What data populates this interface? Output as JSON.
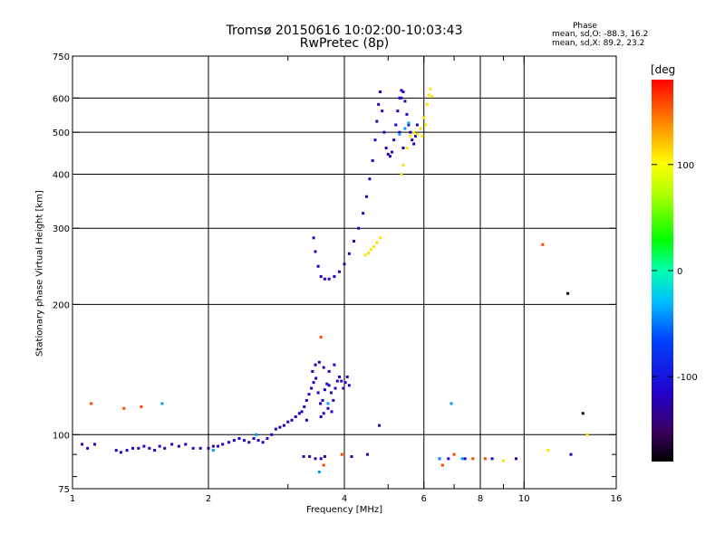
{
  "chart_data": {
    "type": "scatter",
    "title": "Tromsø 20150616 10:02:00-10:03:43",
    "subtitle": "RwPretec (8p)",
    "xlabel": "Frequency [MHz]",
    "ylabel": "Stationary phase Virtual Height [km]",
    "x_scale": "log",
    "y_scale": "log",
    "xlim": [
      1,
      16
    ],
    "ylim": [
      75,
      750
    ],
    "x_ticks": [
      1,
      2,
      4,
      6,
      8,
      10,
      16
    ],
    "x_tick_labels": [
      "1",
      "2",
      "4",
      "6",
      "8",
      "10",
      "16"
    ],
    "x_minor_ticks": [
      3,
      5,
      7,
      9
    ],
    "y_ticks": [
      75,
      100,
      200,
      300,
      400,
      500,
      600,
      750
    ],
    "y_tick_labels": [
      "75",
      "100",
      "200",
      "300",
      "400",
      "500",
      "600",
      "750"
    ],
    "y_minor_ticks": [
      80,
      90
    ],
    "grid": true,
    "phase_stats": {
      "heading": "Phase",
      "o_line": "mean, sd,O: -88.3, 16.2",
      "x_line": "mean, sd,X:  89.2, 23.2"
    },
    "colorbar": {
      "label": "[deg",
      "range": [
        -180,
        180
      ],
      "ticks": [
        100,
        0,
        -100
      ],
      "tick_labels": [
        "100",
        "0",
        "-100"
      ],
      "colormap": "black-purple-blue-cyan-green-yellow-red"
    },
    "series": [
      {
        "phase_deg": -120,
        "points": [
          [
            1.05,
            95
          ],
          [
            1.08,
            93
          ],
          [
            1.12,
            95
          ],
          [
            1.25,
            92
          ],
          [
            1.28,
            91
          ],
          [
            1.32,
            92
          ],
          [
            1.36,
            93
          ],
          [
            1.4,
            93
          ],
          [
            1.44,
            94
          ],
          [
            1.48,
            93
          ],
          [
            1.52,
            92
          ],
          [
            1.56,
            94
          ],
          [
            1.6,
            93
          ],
          [
            1.66,
            95
          ],
          [
            1.72,
            94
          ],
          [
            1.78,
            95
          ],
          [
            1.85,
            93
          ],
          [
            1.92,
            93
          ],
          [
            2.0,
            93
          ],
          [
            2.05,
            94
          ],
          [
            2.1,
            94
          ],
          [
            2.15,
            95
          ],
          [
            2.22,
            96
          ],
          [
            2.28,
            97
          ],
          [
            2.34,
            98
          ],
          [
            2.4,
            97
          ],
          [
            2.46,
            96
          ],
          [
            2.52,
            98
          ],
          [
            2.58,
            97
          ],
          [
            2.64,
            96
          ],
          [
            2.7,
            98
          ],
          [
            2.76,
            100
          ],
          [
            2.82,
            103
          ],
          [
            2.88,
            104
          ],
          [
            2.94,
            105
          ],
          [
            3.0,
            107
          ],
          [
            3.06,
            108
          ],
          [
            3.12,
            110
          ],
          [
            3.18,
            112
          ],
          [
            3.22,
            113
          ],
          [
            3.26,
            116
          ],
          [
            3.3,
            120
          ],
          [
            3.34,
            124
          ],
          [
            3.38,
            128
          ],
          [
            3.42,
            132
          ],
          [
            3.46,
            135
          ],
          [
            3.5,
            125
          ],
          [
            3.54,
            118
          ],
          [
            3.58,
            120
          ],
          [
            3.62,
            127
          ],
          [
            3.66,
            131
          ],
          [
            3.7,
            130
          ],
          [
            3.74,
            125
          ],
          [
            3.78,
            120
          ],
          [
            3.82,
            128
          ],
          [
            3.86,
            133
          ],
          [
            3.9,
            136
          ],
          [
            3.94,
            133
          ],
          [
            3.98,
            128
          ],
          [
            4.02,
            132
          ],
          [
            4.06,
            136
          ],
          [
            4.1,
            130
          ],
          [
            3.55,
            110
          ],
          [
            3.6,
            112
          ],
          [
            3.68,
            115
          ],
          [
            3.75,
            113
          ],
          [
            3.4,
            140
          ],
          [
            3.45,
            145
          ],
          [
            3.52,
            147
          ],
          [
            3.6,
            143
          ],
          [
            3.7,
            140
          ],
          [
            3.8,
            145
          ],
          [
            3.3,
            108
          ],
          [
            3.25,
            89
          ],
          [
            3.35,
            89
          ],
          [
            3.45,
            88
          ],
          [
            3.55,
            88
          ],
          [
            3.62,
            89
          ],
          [
            4.15,
            89
          ],
          [
            4.5,
            90
          ],
          [
            4.78,
            105
          ],
          [
            3.42,
            285
          ],
          [
            3.45,
            265
          ],
          [
            3.5,
            245
          ],
          [
            3.55,
            232
          ],
          [
            3.62,
            229
          ],
          [
            3.7,
            229
          ],
          [
            3.8,
            232
          ],
          [
            3.9,
            238
          ],
          [
            4.0,
            248
          ],
          [
            4.1,
            262
          ],
          [
            4.2,
            280
          ],
          [
            4.3,
            300
          ],
          [
            4.4,
            325
          ],
          [
            4.48,
            355
          ],
          [
            4.55,
            390
          ],
          [
            4.62,
            430
          ],
          [
            4.68,
            480
          ],
          [
            4.72,
            530
          ],
          [
            4.76,
            580
          ],
          [
            4.8,
            620
          ],
          [
            4.85,
            560
          ],
          [
            4.9,
            500
          ],
          [
            4.95,
            460
          ],
          [
            5.0,
            445
          ],
          [
            5.05,
            440
          ],
          [
            5.1,
            450
          ],
          [
            5.15,
            480
          ],
          [
            5.2,
            520
          ],
          [
            5.25,
            560
          ],
          [
            5.3,
            600
          ],
          [
            5.35,
            625
          ],
          [
            5.4,
            620
          ],
          [
            5.45,
            590
          ],
          [
            5.5,
            550
          ],
          [
            5.55,
            520
          ],
          [
            5.6,
            500
          ],
          [
            5.65,
            480
          ],
          [
            5.7,
            470
          ],
          [
            5.75,
            490
          ],
          [
            5.8,
            520
          ],
          [
            5.35,
            600
          ],
          [
            5.3,
            500
          ],
          [
            5.4,
            460
          ],
          [
            6.5,
            88
          ],
          [
            6.8,
            88
          ],
          [
            7.4,
            88
          ],
          [
            8.5,
            88
          ],
          [
            9.6,
            88
          ],
          [
            12.7,
            90
          ]
        ]
      },
      {
        "phase_deg": 110,
        "points": [
          [
            4.45,
            260
          ],
          [
            4.52,
            263
          ],
          [
            4.58,
            268
          ],
          [
            4.65,
            272
          ],
          [
            4.72,
            278
          ],
          [
            4.8,
            285
          ],
          [
            5.35,
            400
          ],
          [
            5.4,
            420
          ],
          [
            5.5,
            460
          ],
          [
            5.6,
            490
          ],
          [
            5.7,
            500
          ],
          [
            5.8,
            495
          ],
          [
            5.9,
            510
          ],
          [
            6.0,
            540
          ],
          [
            6.1,
            580
          ],
          [
            6.15,
            610
          ],
          [
            6.2,
            630
          ],
          [
            6.25,
            605
          ],
          [
            6.05,
            520
          ],
          [
            5.95,
            490
          ],
          [
            9.0,
            87
          ],
          [
            11.3,
            92
          ],
          [
            13.8,
            100
          ]
        ]
      },
      {
        "phase_deg": -40,
        "points": [
          [
            1.58,
            118
          ],
          [
            2.05,
            92
          ],
          [
            2.55,
            100
          ],
          [
            3.52,
            82
          ],
          [
            3.68,
            118
          ],
          [
            5.3,
            495
          ],
          [
            5.45,
            510
          ],
          [
            5.55,
            525
          ],
          [
            6.5,
            88
          ],
          [
            6.9,
            118
          ],
          [
            7.3,
            88
          ]
        ]
      },
      {
        "phase_deg": 160,
        "points": [
          [
            1.1,
            118
          ],
          [
            1.3,
            115
          ],
          [
            1.42,
            116
          ],
          [
            3.55,
            168
          ],
          [
            3.6,
            85
          ],
          [
            3.95,
            90
          ],
          [
            6.6,
            85
          ],
          [
            7.0,
            90
          ],
          [
            7.7,
            88
          ],
          [
            8.2,
            88
          ],
          [
            11.0,
            275
          ]
        ]
      },
      {
        "phase_deg": -170,
        "points": [
          [
            12.5,
            212
          ],
          [
            13.5,
            112
          ]
        ]
      }
    ]
  }
}
